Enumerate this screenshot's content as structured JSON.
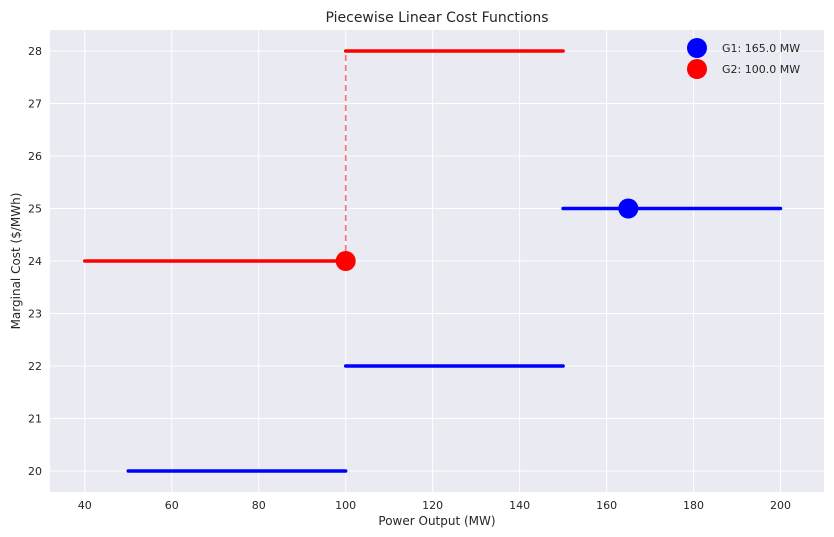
{
  "chart_data": {
    "type": "line",
    "title": "Piecewise Linear Cost Functions",
    "xlabel": "Power Output (MW)",
    "ylabel": "Marginal Cost ($/MWh)",
    "xlim": [
      32,
      210
    ],
    "ylim": [
      19.6,
      28.4
    ],
    "xticks": [
      40,
      60,
      80,
      100,
      120,
      140,
      160,
      180,
      200
    ],
    "yticks": [
      20,
      21,
      22,
      23,
      24,
      25,
      26,
      27,
      28
    ],
    "grid": true,
    "legend_position": "top-right",
    "series": [
      {
        "name": "G1",
        "color": "#0000ff",
        "segments": [
          {
            "x": [
              50,
              100
            ],
            "y": [
              20,
              20
            ]
          },
          {
            "x": [
              100,
              150
            ],
            "y": [
              22,
              22
            ]
          },
          {
            "x": [
              150,
              200
            ],
            "y": [
              25,
              25
            ]
          }
        ],
        "operating_point": {
          "x": 165,
          "y": 25
        }
      },
      {
        "name": "G2",
        "color": "#ff0000",
        "segments": [
          {
            "x": [
              40,
              100
            ],
            "y": [
              24,
              24
            ]
          },
          {
            "x": [
              100,
              150
            ],
            "y": [
              28,
              28
            ]
          }
        ],
        "step_connector": {
          "x": [
            100,
            100
          ],
          "y": [
            24,
            28
          ]
        },
        "operating_point": {
          "x": 100,
          "y": 24
        }
      }
    ],
    "legend": [
      {
        "label": "G1: 165.0 MW",
        "color": "#0000ff"
      },
      {
        "label": "G2: 100.0 MW",
        "color": "#ff0000"
      }
    ]
  }
}
